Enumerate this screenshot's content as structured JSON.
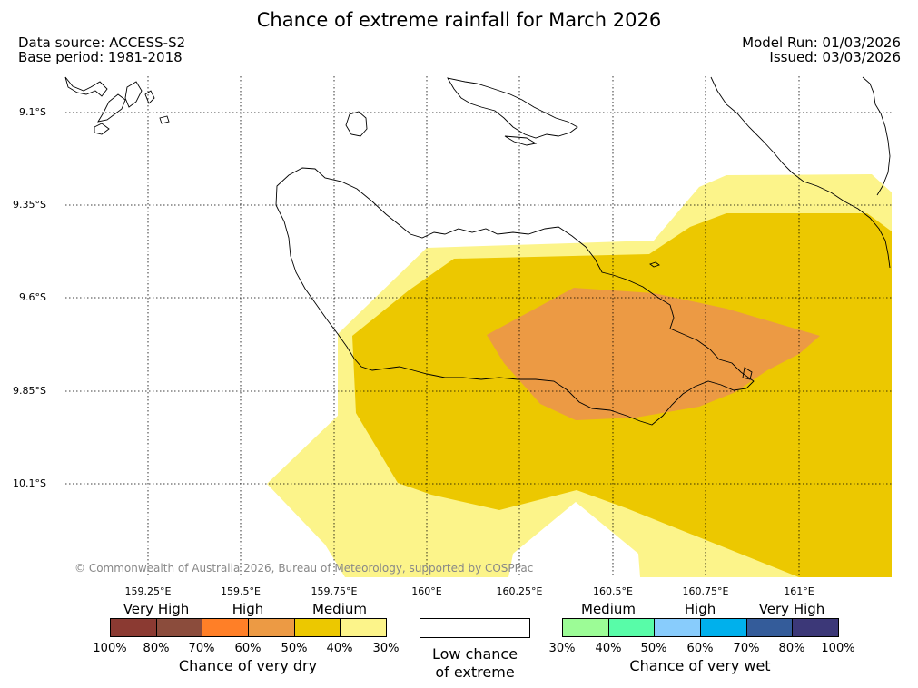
{
  "title": "Chance of extreme rainfall for March 2026",
  "meta": {
    "source": "Data source: ACCESS-S2",
    "base_period": "Base period: 1981-2018",
    "model_run": "Model Run: 01/03/2026",
    "issued": "Issued: 03/03/2026"
  },
  "map": {
    "lat_ticks": [
      "9.1°S",
      "9.35°S",
      "9.6°S",
      "9.85°S",
      "10.1°S"
    ],
    "lon_ticks": [
      "159.25°E",
      "159.5°E",
      "159.75°E",
      "160°E",
      "160.25°E",
      "160.5°E",
      "160.75°E",
      "161°E"
    ],
    "copyright": "© Commonwealth of Australia 2026, Bureau of Meteorology, supported by COSPPac",
    "colors": {
      "medium_dry": "#fcf48a",
      "high_dry_40": "#ecc800",
      "high_dry_60": "#ec9a44",
      "coast": "#000000",
      "grid": "#000000"
    }
  },
  "legend": {
    "dry": {
      "categories": [
        "Very High",
        "High",
        "Medium"
      ],
      "percents": [
        "100%",
        "80%",
        "70%",
        "60%",
        "50%",
        "40%",
        "30%"
      ],
      "colors": [
        "#8b3a32",
        "#8b4c3c",
        "#ff7f27",
        "#ec9a44",
        "#ecc800",
        "#fcf48a"
      ],
      "caption": "Chance of very dry"
    },
    "low": {
      "line1": "Low chance",
      "line2": "of extreme"
    },
    "wet": {
      "categories": [
        "Medium",
        "High",
        "Very High"
      ],
      "percents": [
        "30%",
        "40%",
        "50%",
        "60%",
        "70%",
        "80%",
        "100%"
      ],
      "colors": [
        "#9cfc96",
        "#58fca8",
        "#88ccfc",
        "#00b0ec",
        "#345c9a",
        "#3c3878"
      ],
      "caption": "Chance of very wet"
    }
  }
}
